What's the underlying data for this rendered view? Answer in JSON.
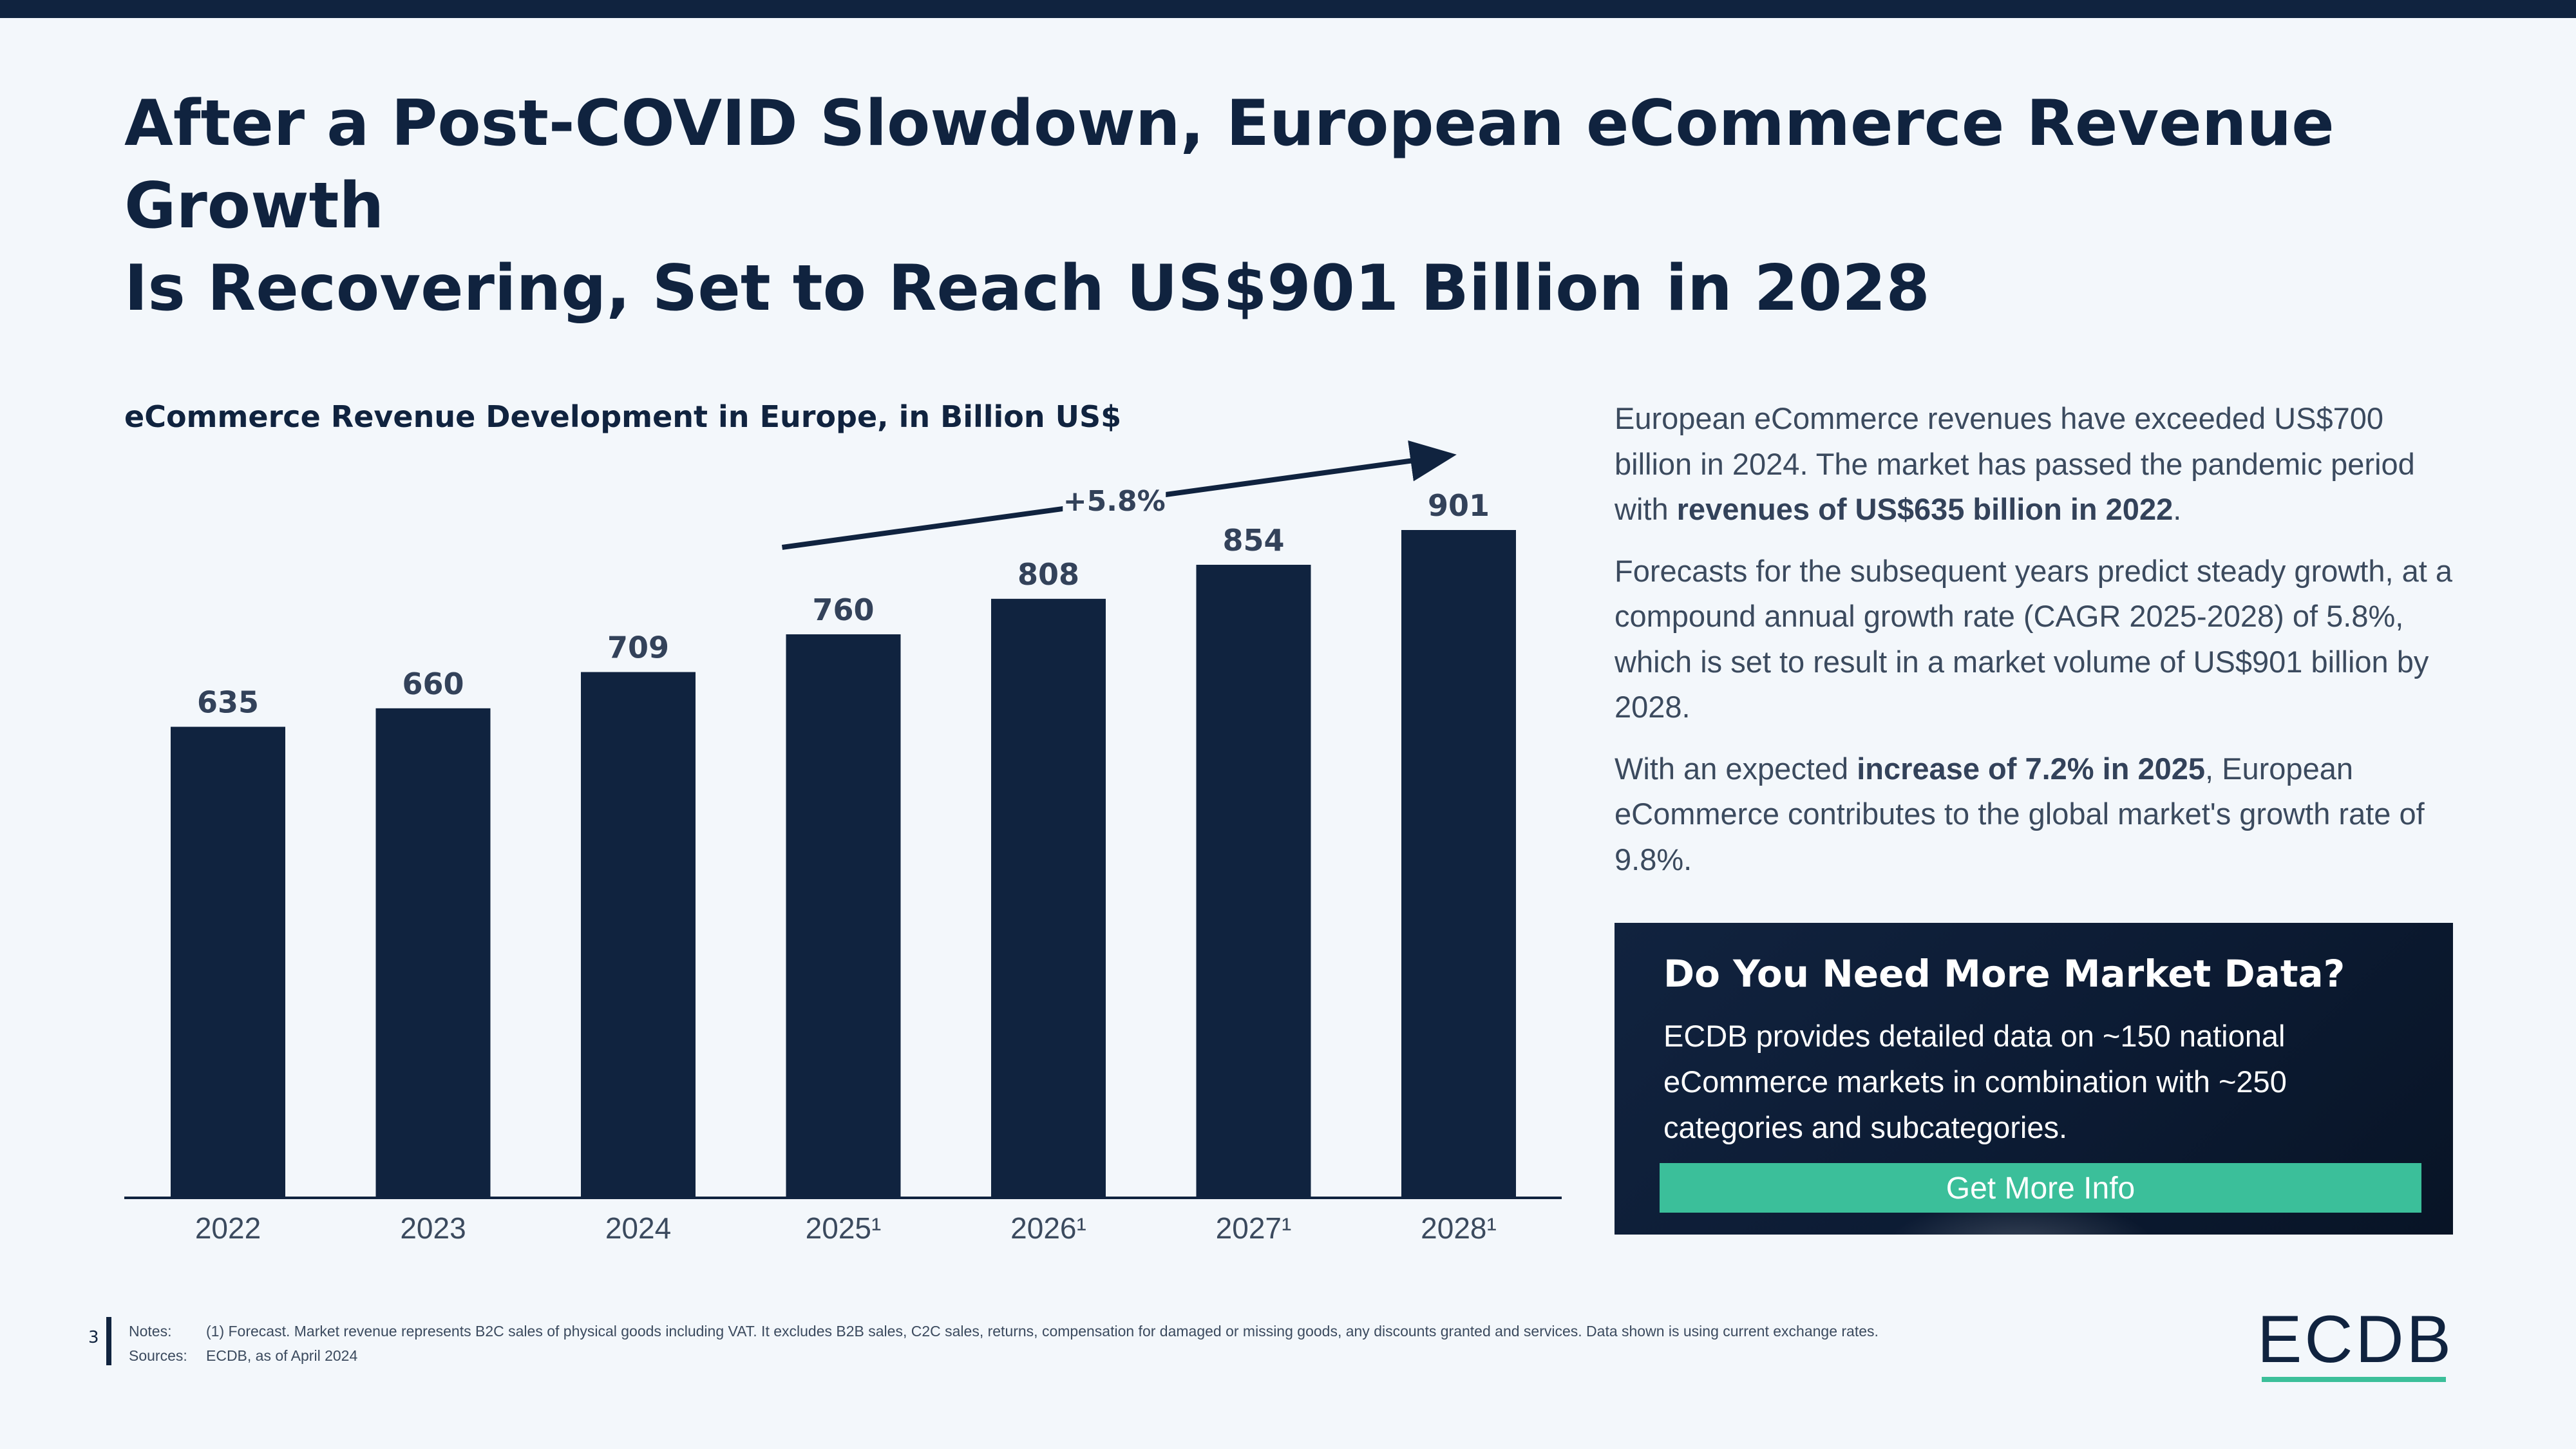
{
  "title_line1": "After a Post-COVID Slowdown, European eCommerce Revenue Growth",
  "title_line2": "Is Recovering, Set to Reach US$901 Billion in 2028",
  "chart_data": {
    "type": "bar",
    "title": "eCommerce Revenue Development in Europe, in Billion US$",
    "categories": [
      "2022",
      "2023",
      "2024",
      "2025¹",
      "2026¹",
      "2027¹",
      "2028¹"
    ],
    "values": [
      635,
      660,
      709,
      760,
      808,
      854,
      901
    ],
    "ylim": [
      0,
      901
    ],
    "annotation": "+5.8%",
    "bar_color": "#10233f",
    "xlabel": "",
    "ylabel": ""
  },
  "description": {
    "p1_a": "European eCommerce revenues have exceeded US$700 billion in 2024. The market has passed the pandemic period with ",
    "p1_b": "revenues of US$635 billion in 2022",
    "p1_c": ".",
    "p2": "Forecasts for the subsequent years predict steady growth, at a compound annual growth rate (CAGR 2025-2028) of 5.8%, which is set to result in a market volume of US$901 billion by 2028.",
    "p3_a": "With an expected ",
    "p3_b": "increase of 7.2% in 2025",
    "p3_c": ", European eCommerce contributes to the global market's growth rate of 9.8%."
  },
  "cta": {
    "title": "Do You Need More Market Data?",
    "text": "ECDB provides detailed data on ~150 national eCommerce markets in combination with ~250 categories and subcategories.",
    "button": "Get More Info"
  },
  "footer": {
    "page_number": "3",
    "notes_label": "Notes:",
    "notes": "(1) Forecast. Market revenue represents B2C sales of physical goods including VAT. It excludes B2B sales, C2C sales, returns, compensation for damaged or missing goods, any discounts granted and services. Data shown is using current exchange rates.",
    "sources_label": "Sources:",
    "sources": "ECDB, as of April 2024"
  },
  "logo": "ECDB",
  "colors": {
    "navy": "#10233f",
    "accent": "#3bbf9a",
    "background": "#f3f7fb"
  }
}
